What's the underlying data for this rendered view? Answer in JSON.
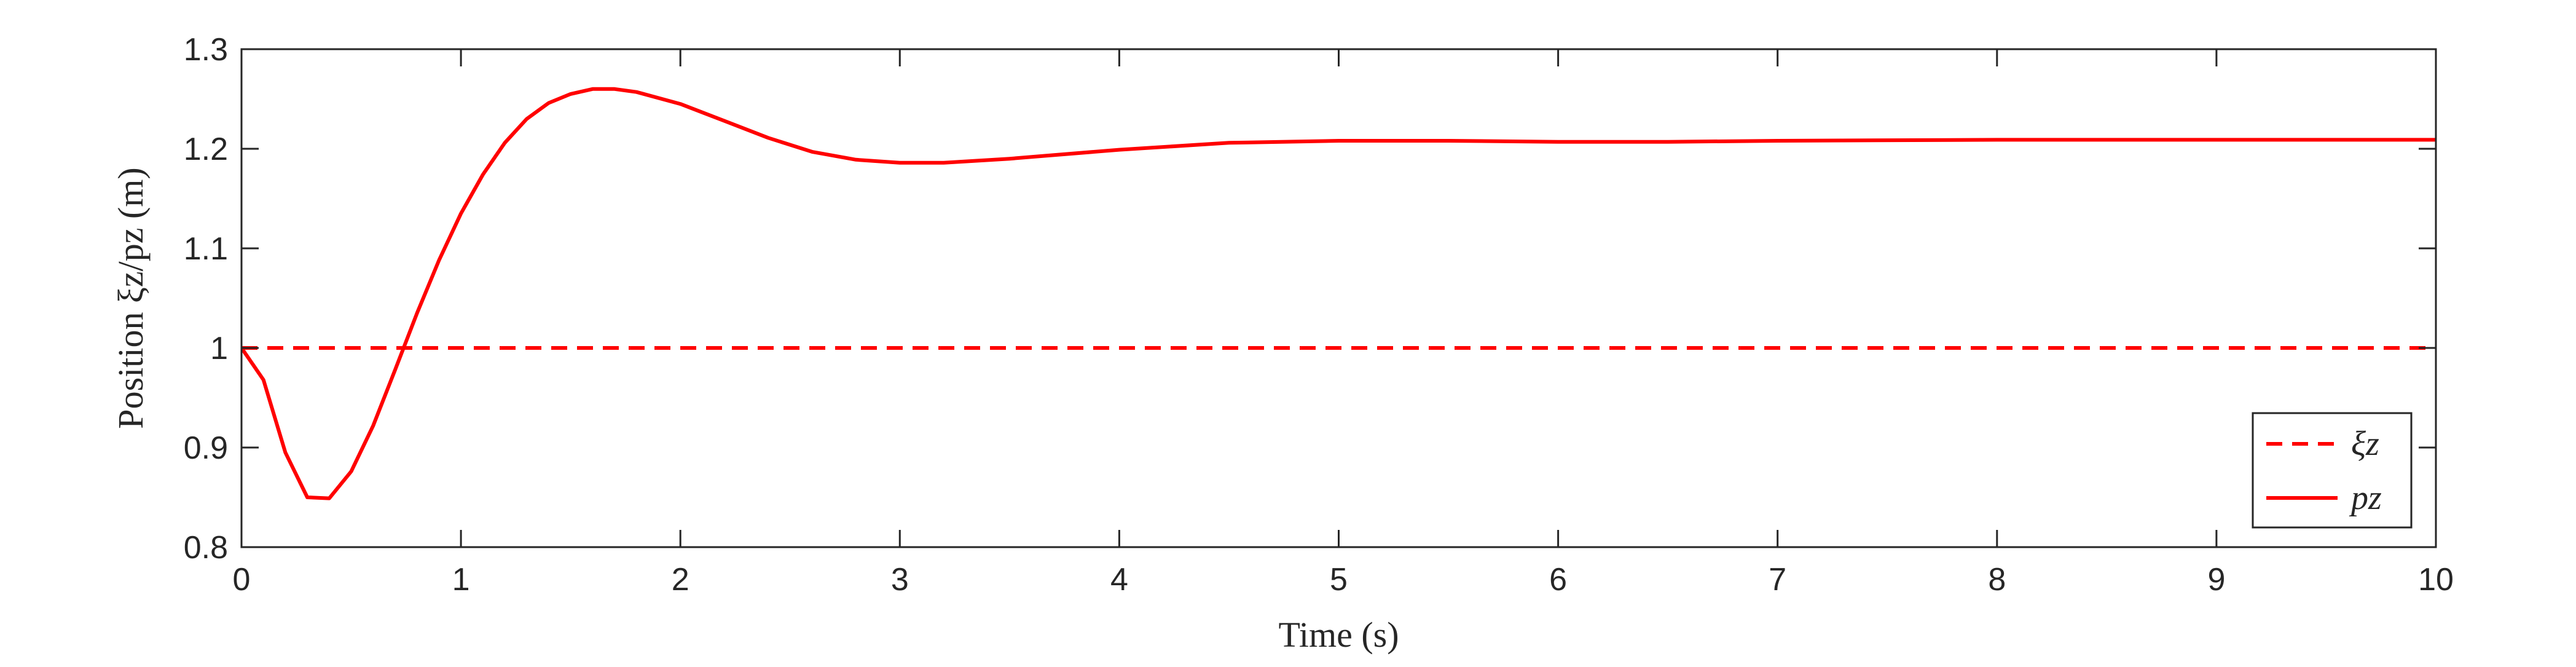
{
  "chart_data": {
    "type": "line",
    "xlabel": "Time (s)",
    "ylabel": "Position ξz/pz (m)",
    "xlim": [
      0,
      10
    ],
    "ylim": [
      0.8,
      1.3
    ],
    "xticks": [
      "0",
      "1",
      "2",
      "3",
      "4",
      "5",
      "6",
      "7",
      "8",
      "9",
      "10"
    ],
    "yticks": [
      "0.8",
      "0.9",
      "1",
      "1.1",
      "1.2",
      "1.3"
    ],
    "grid": false,
    "legend_position": "bottom-right",
    "line_color": "#ff0000",
    "series": [
      {
        "name": "ξz",
        "style": "dashed",
        "x": [
          0,
          10
        ],
        "y": [
          1.0,
          1.0
        ]
      },
      {
        "name": "pz",
        "style": "solid",
        "x": [
          0,
          0.1,
          0.2,
          0.3,
          0.4,
          0.5,
          0.6,
          0.7,
          0.8,
          0.9,
          1.0,
          1.1,
          1.2,
          1.3,
          1.4,
          1.5,
          1.6,
          1.7,
          1.8,
          2.0,
          2.2,
          2.4,
          2.6,
          2.8,
          3.0,
          3.2,
          3.5,
          4.0,
          4.5,
          5.0,
          5.5,
          6.0,
          6.5,
          7.0,
          8.0,
          9.0,
          10.0
        ],
        "y": [
          1.0,
          0.968,
          0.895,
          0.85,
          0.849,
          0.876,
          0.922,
          0.978,
          1.035,
          1.088,
          1.135,
          1.174,
          1.206,
          1.23,
          1.246,
          1.255,
          1.26,
          1.26,
          1.257,
          1.245,
          1.228,
          1.211,
          1.197,
          1.189,
          1.186,
          1.186,
          1.19,
          1.199,
          1.206,
          1.208,
          1.208,
          1.207,
          1.207,
          1.208,
          1.209,
          1.209,
          1.209
        ]
      }
    ]
  }
}
